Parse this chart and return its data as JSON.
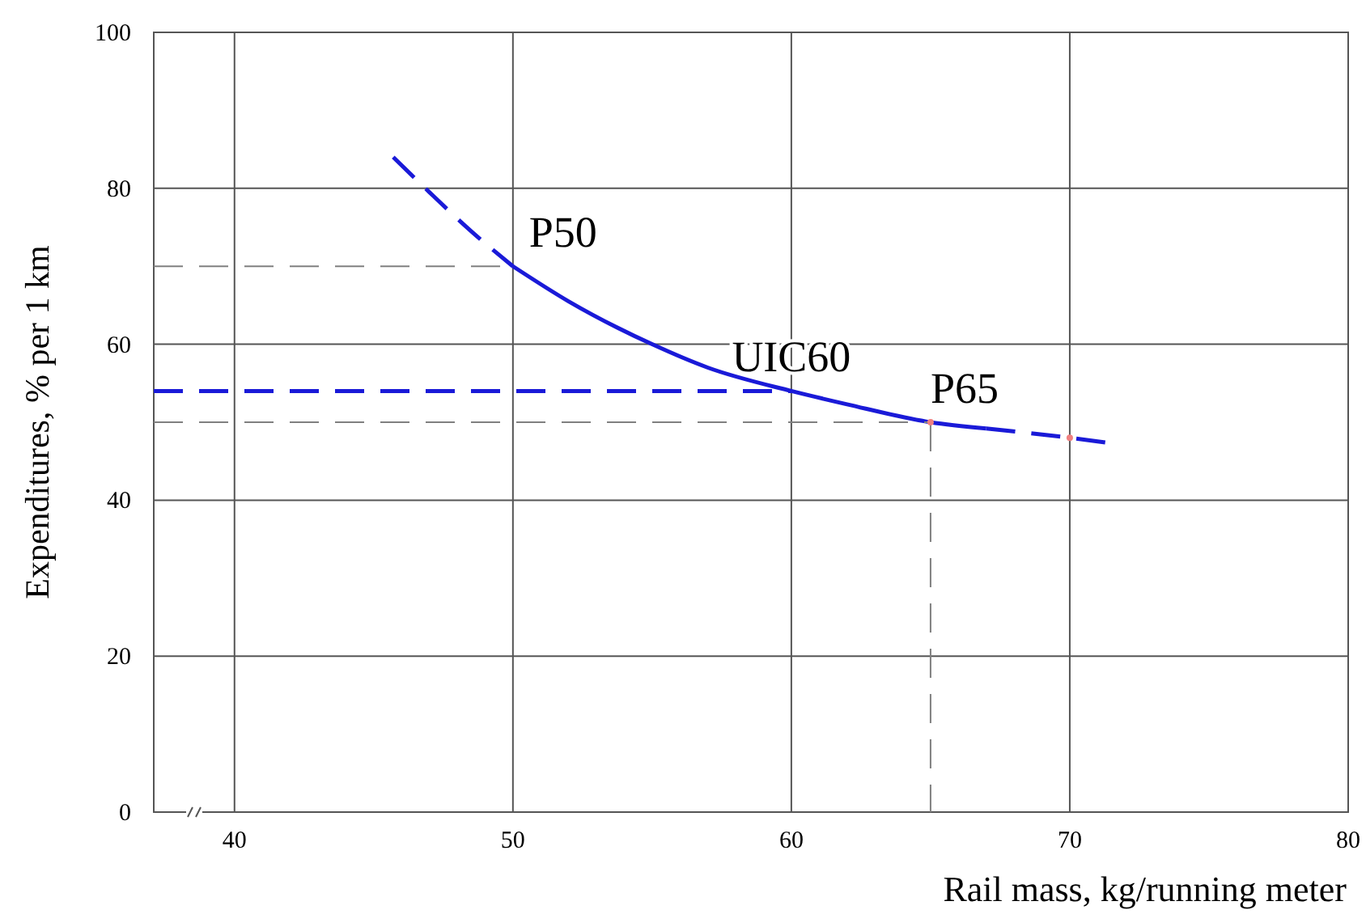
{
  "chart_data": {
    "type": "line",
    "xlabel": "Rail mass, kg/running meter",
    "ylabel": "Expenditures, % per 1 km",
    "xlim": [
      37.1,
      80
    ],
    "xticks": [
      40,
      50,
      60,
      70,
      80
    ],
    "ylim": [
      0,
      100
    ],
    "yticks": [
      0,
      20,
      40,
      60,
      80,
      100
    ],
    "grid": true,
    "marker": "none",
    "series": [
      {
        "color": "#1a1ad8",
        "line_style": "dashed",
        "x": [
          45.7,
          47,
          48.5,
          50
        ],
        "values": [
          84,
          79.5,
          74.5,
          70
        ]
      },
      {
        "color": "#1a1ad8",
        "line_style": "solid",
        "x": [
          50,
          52,
          55,
          57,
          60,
          62,
          65,
          67
        ],
        "values": [
          70,
          65.5,
          60,
          57,
          54,
          52.3,
          50,
          49.2
        ]
      },
      {
        "color": "#1a1ad8",
        "line_style": "dashed",
        "x": [
          67,
          70,
          71.3
        ],
        "values": [
          49.2,
          48,
          47.4
        ]
      },
      {
        "color": "#1a1ad8",
        "line_style": "dashed",
        "x": [
          37.1,
          60
        ],
        "values": [
          54,
          54
        ]
      },
      {
        "color": "#808080",
        "line_style": "dashed",
        "x": [
          37.1,
          50
        ],
        "values": [
          70,
          70
        ]
      },
      {
        "color": "#808080",
        "line_style": "dashed",
        "x": [
          37.1,
          65
        ],
        "values": [
          50,
          50
        ]
      },
      {
        "color": "#808080",
        "line_style": "dashed",
        "x": [
          65,
          65
        ],
        "values": [
          50,
          0
        ]
      },
      {
        "type": "scatter",
        "marker": "circle",
        "color": "#f08080",
        "x": [
          65,
          70
        ],
        "values": [
          50,
          48
        ]
      }
    ],
    "annotations": [
      {
        "text": "P50",
        "x": 50,
        "y": 70
      },
      {
        "text": "UIC60",
        "x": 60,
        "y": 54
      },
      {
        "text": "P65",
        "x": 65,
        "y": 50
      }
    ]
  }
}
